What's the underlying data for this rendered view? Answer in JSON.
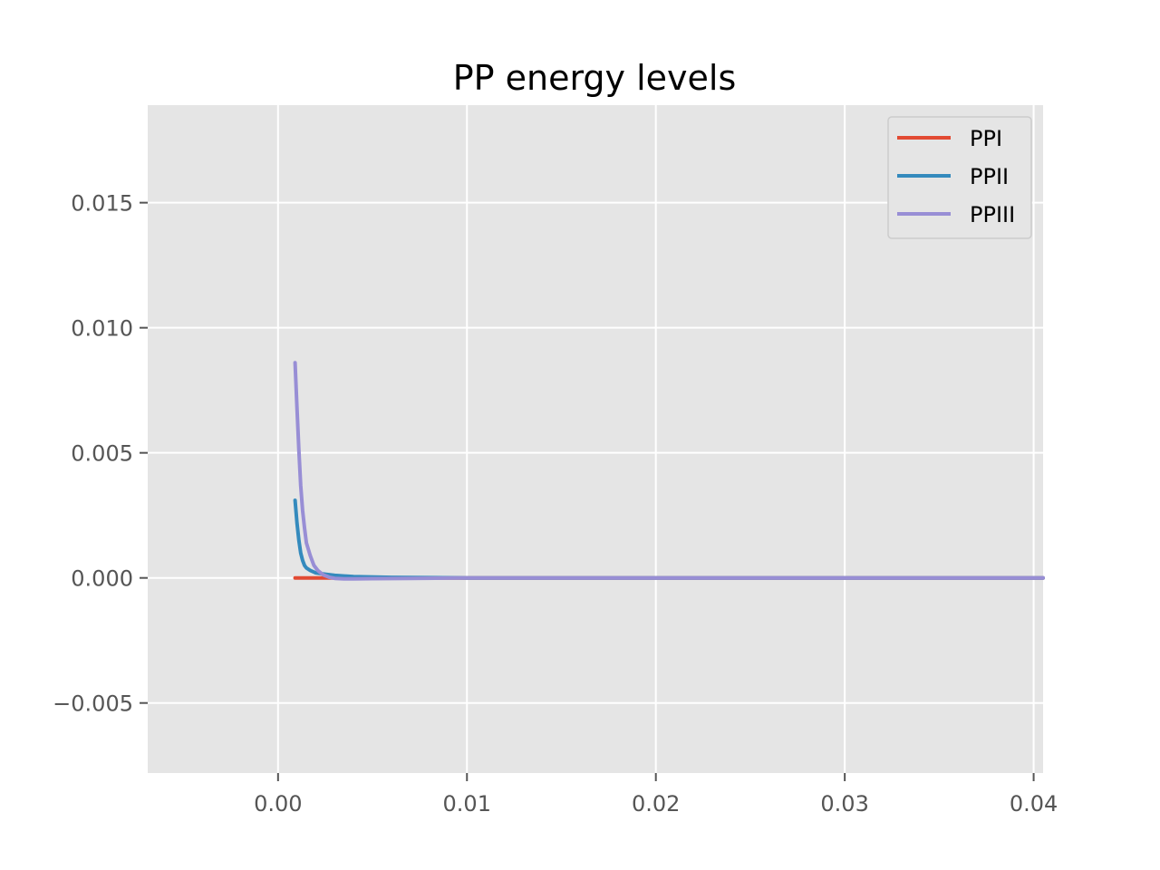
{
  "chart_data": {
    "type": "line",
    "title": "PP energy levels",
    "xlabel": "",
    "ylabel": "",
    "xlim": [
      -0.0069,
      0.0405
    ],
    "ylim": [
      -0.0078,
      0.0189
    ],
    "xticks": [
      {
        "value": 0.0,
        "label": "0.00"
      },
      {
        "value": 0.01,
        "label": "0.01"
      },
      {
        "value": 0.02,
        "label": "0.02"
      },
      {
        "value": 0.03,
        "label": "0.03"
      },
      {
        "value": 0.04,
        "label": "0.04"
      }
    ],
    "yticks": [
      {
        "value": -0.005,
        "label": "−0.005"
      },
      {
        "value": 0.0,
        "label": "0.000"
      },
      {
        "value": 0.005,
        "label": "0.005"
      },
      {
        "value": 0.01,
        "label": "0.010"
      },
      {
        "value": 0.015,
        "label": "0.015"
      }
    ],
    "grid": true,
    "legend_position": "top-right",
    "background": "#e5e5e5",
    "series": [
      {
        "name": "PPI",
        "color": "#e24a33",
        "x": [
          0.0009,
          0.0012,
          0.0015,
          0.002,
          0.0025,
          0.003,
          0.004,
          0.006,
          0.01,
          0.02,
          0.03,
          0.0405
        ],
        "y": [
          0.0,
          0.0,
          0.0,
          0.0,
          0.0,
          0.0,
          0.0,
          0.0,
          0.0,
          0.0,
          0.0,
          0.0
        ]
      },
      {
        "name": "PPII",
        "color": "#348abd",
        "x": [
          0.0009,
          0.001,
          0.0011,
          0.0012,
          0.0013,
          0.0014,
          0.0015,
          0.0017,
          0.002,
          0.0025,
          0.003,
          0.004,
          0.006,
          0.01,
          0.02,
          0.03,
          0.0405
        ],
        "y": [
          0.0031,
          0.0022,
          0.0015,
          0.001,
          0.0007,
          0.0005,
          0.0004,
          0.0003,
          0.0002,
          0.00015,
          0.0001,
          5e-05,
          2e-05,
          0.0,
          0.0,
          0.0,
          0.0
        ]
      },
      {
        "name": "PPIII",
        "color": "#988ed5",
        "x": [
          0.0009,
          0.001,
          0.0011,
          0.0012,
          0.0013,
          0.0014,
          0.0015,
          0.0017,
          0.0019,
          0.0021,
          0.0024,
          0.0027,
          0.003,
          0.0035,
          0.004,
          0.005,
          0.007,
          0.01,
          0.02,
          0.03,
          0.0405
        ],
        "y": [
          0.0086,
          0.0068,
          0.0051,
          0.0037,
          0.0027,
          0.002,
          0.0014,
          0.0009,
          0.0005,
          0.0003,
          0.00012,
          3e-05,
          -2e-05,
          -4e-05,
          -4e-05,
          -3e-05,
          -2e-05,
          0.0,
          0.0,
          0.0,
          0.0
        ]
      }
    ]
  }
}
